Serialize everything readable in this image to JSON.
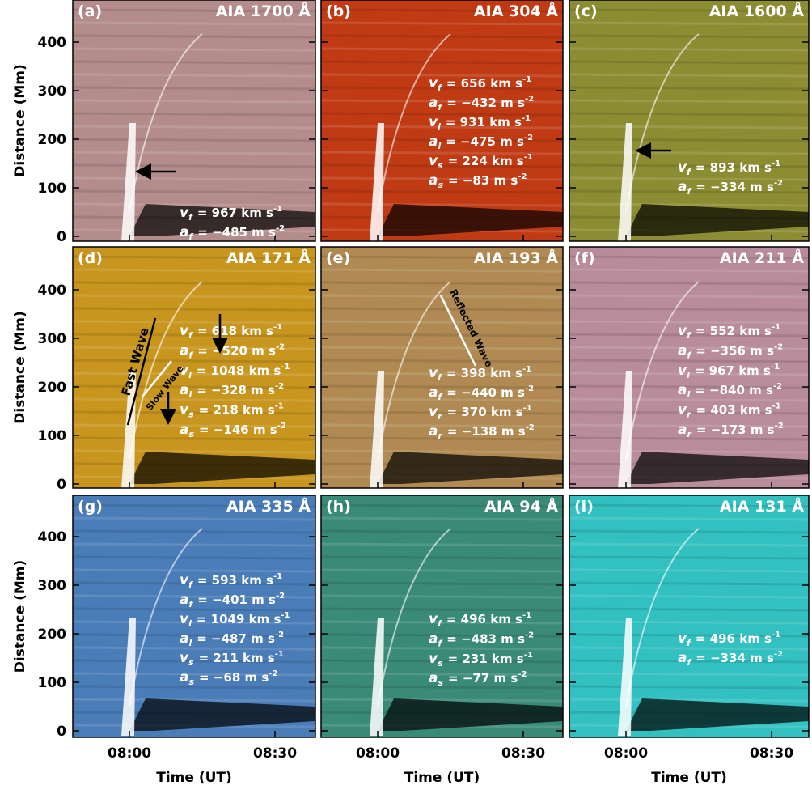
{
  "panels": [
    {
      "label": "(a)",
      "instrument": "AIA 1700 Å",
      "annotations": [
        {
          "sym": "v",
          "sub": "f",
          "text": "= 967 km s",
          "sup": "-1"
        },
        {
          "sym": "a",
          "sub": "f",
          "text": "= −485 m s",
          "sup": "-2"
        }
      ]
    },
    {
      "label": "(b)",
      "instrument": "AIA  304 Å",
      "annotations": [
        {
          "sym": "v",
          "sub": "f",
          "text": "= 656 km s",
          "sup": "-1"
        },
        {
          "sym": "a",
          "sub": "f",
          "text": "= −432 m s",
          "sup": "-2"
        },
        {
          "sym": "v",
          "sub": "l",
          "text": "= 931 km s",
          "sup": "-1"
        },
        {
          "sym": "a",
          "sub": "l",
          "text": "= −475 m s",
          "sup": "-2"
        },
        {
          "sym": "v",
          "sub": "s",
          "text": "= 224 km s",
          "sup": "-1"
        },
        {
          "sym": "a",
          "sub": "s",
          "text": "= −83 m s",
          "sup": "-2"
        }
      ]
    },
    {
      "label": "(c)",
      "instrument": "AIA 1600 Å",
      "annotations": [
        {
          "sym": "v",
          "sub": "f",
          "text": "= 893 km s",
          "sup": "-1"
        },
        {
          "sym": "a",
          "sub": "f",
          "text": "= −334 m s",
          "sup": "-2"
        }
      ]
    },
    {
      "label": "(d)",
      "instrument": "AIA  171 Å",
      "annotations": [
        {
          "sym": "v",
          "sub": "f",
          "text": "= 618 km s",
          "sup": "-1"
        },
        {
          "sym": "a",
          "sub": "f",
          "text": "= −520 m s",
          "sup": "-2"
        },
        {
          "sym": "v",
          "sub": "l",
          "text": "= 1048 km s",
          "sup": "-1"
        },
        {
          "sym": "a",
          "sub": "l",
          "text": "= −328 m s",
          "sup": "-2"
        },
        {
          "sym": "v",
          "sub": "s",
          "text": "= 218 km s",
          "sup": "-1"
        },
        {
          "sym": "a",
          "sub": "s",
          "text": "= −146 m s",
          "sup": "-2"
        }
      ]
    },
    {
      "label": "(e)",
      "instrument": "AIA  193 Å",
      "annotations": [
        {
          "sym": "v",
          "sub": "f",
          "text": "= 398 km s",
          "sup": "-1"
        },
        {
          "sym": "a",
          "sub": "f",
          "text": "= −440 m s",
          "sup": "-2"
        },
        {
          "sym": "v",
          "sub": "r",
          "text": "= 370 km s",
          "sup": "-1"
        },
        {
          "sym": "a",
          "sub": "r",
          "text": "= −138 m s",
          "sup": "-2"
        }
      ]
    },
    {
      "label": "(f)",
      "instrument": "AIA  211 Å",
      "annotations": [
        {
          "sym": "v",
          "sub": "f",
          "text": "= 552 km s",
          "sup": "-1"
        },
        {
          "sym": "a",
          "sub": "f",
          "text": "= −356 m s",
          "sup": "-2"
        },
        {
          "sym": "v",
          "sub": "l",
          "text": "= 967 km s",
          "sup": "-1"
        },
        {
          "sym": "a",
          "sub": "l",
          "text": "= −840 m s",
          "sup": "-2"
        },
        {
          "sym": "v",
          "sub": "r",
          "text": "= 403 km s",
          "sup": "-1"
        },
        {
          "sym": "a",
          "sub": "r",
          "text": "= −173 m s",
          "sup": "-2"
        }
      ]
    },
    {
      "label": "(g)",
      "instrument": "AIA  335 Å",
      "annotations": [
        {
          "sym": "v",
          "sub": "f",
          "text": "= 593 km s",
          "sup": "-1"
        },
        {
          "sym": "a",
          "sub": "f",
          "text": "= −401 m s",
          "sup": "-2"
        },
        {
          "sym": "v",
          "sub": "l",
          "text": "= 1049 km s",
          "sup": "-1"
        },
        {
          "sym": "a",
          "sub": "l",
          "text": "= −487 m s",
          "sup": "-2"
        },
        {
          "sym": "v",
          "sub": "s",
          "text": "= 211 km s",
          "sup": "-1"
        },
        {
          "sym": "a",
          "sub": "s",
          "text": "= −68 m s",
          "sup": "-2"
        }
      ]
    },
    {
      "label": "(h)",
      "instrument": "AIA   94 Å",
      "annotations": [
        {
          "sym": "v",
          "sub": "f",
          "text": "= 496 km s",
          "sup": "-1"
        },
        {
          "sym": "a",
          "sub": "f",
          "text": "= −483 m s",
          "sup": "-2"
        },
        {
          "sym": "v",
          "sub": "s",
          "text": "= 231 km s",
          "sup": "-1"
        },
        {
          "sym": "a",
          "sub": "s",
          "text": "= −77 m s",
          "sup": "-2"
        }
      ]
    },
    {
      "label": "(i)",
      "instrument": "AIA  131 Å",
      "annotations": [
        {
          "sym": "v",
          "sub": "f",
          "text": "= 496 km s",
          "sup": "-1"
        },
        {
          "sym": "a",
          "sub": "f",
          "text": "= −334 m s",
          "sup": "-2"
        }
      ]
    }
  ],
  "y_axis": {
    "label": "Distance (Mm)",
    "ticks": [
      "0",
      "100",
      "200",
      "300",
      "400"
    ]
  },
  "x_axis": {
    "label": "Time (UT)",
    "ticks": [
      "08:00",
      "08:30"
    ]
  },
  "wave_labels": {
    "fast": "Fast Wave",
    "slow": "Slow Wave",
    "reflected": "Reflected Wave"
  }
}
